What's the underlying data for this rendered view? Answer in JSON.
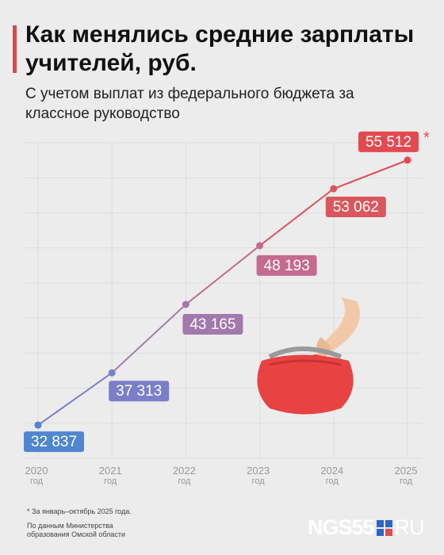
{
  "header": {
    "title": "Как менялись средние зарплаты учителей, руб.",
    "subtitle": "С учетом выплат из федерального бюджета за классное руководство"
  },
  "chart_data": {
    "type": "line",
    "x": [
      "2020",
      "2021",
      "2022",
      "2023",
      "2024",
      "2025"
    ],
    "x_unit": "год",
    "values": [
      32837,
      37313,
      43165,
      48193,
      53062,
      55512
    ],
    "labels": [
      "32 837",
      "37 313",
      "43 165",
      "48 193",
      "53 062",
      "55 512"
    ],
    "last_point_marker": "*",
    "ylim": [
      30000,
      57000
    ],
    "grid": true,
    "colors": [
      "#4f86d0",
      "#7b7fc9",
      "#a278ad",
      "#c56a8f",
      "#d9585e",
      "#e24a50"
    ]
  },
  "footer": {
    "footnote": "* За январь–октябрь 2025 года.",
    "source": "По данным Министерства образования Омской области",
    "logo_left": "NGS55",
    "logo_right": "RU",
    "logo_square_colors": [
      "#2b66c9",
      "#2b66c9",
      "#2b66c9",
      "#e24a50"
    ]
  }
}
